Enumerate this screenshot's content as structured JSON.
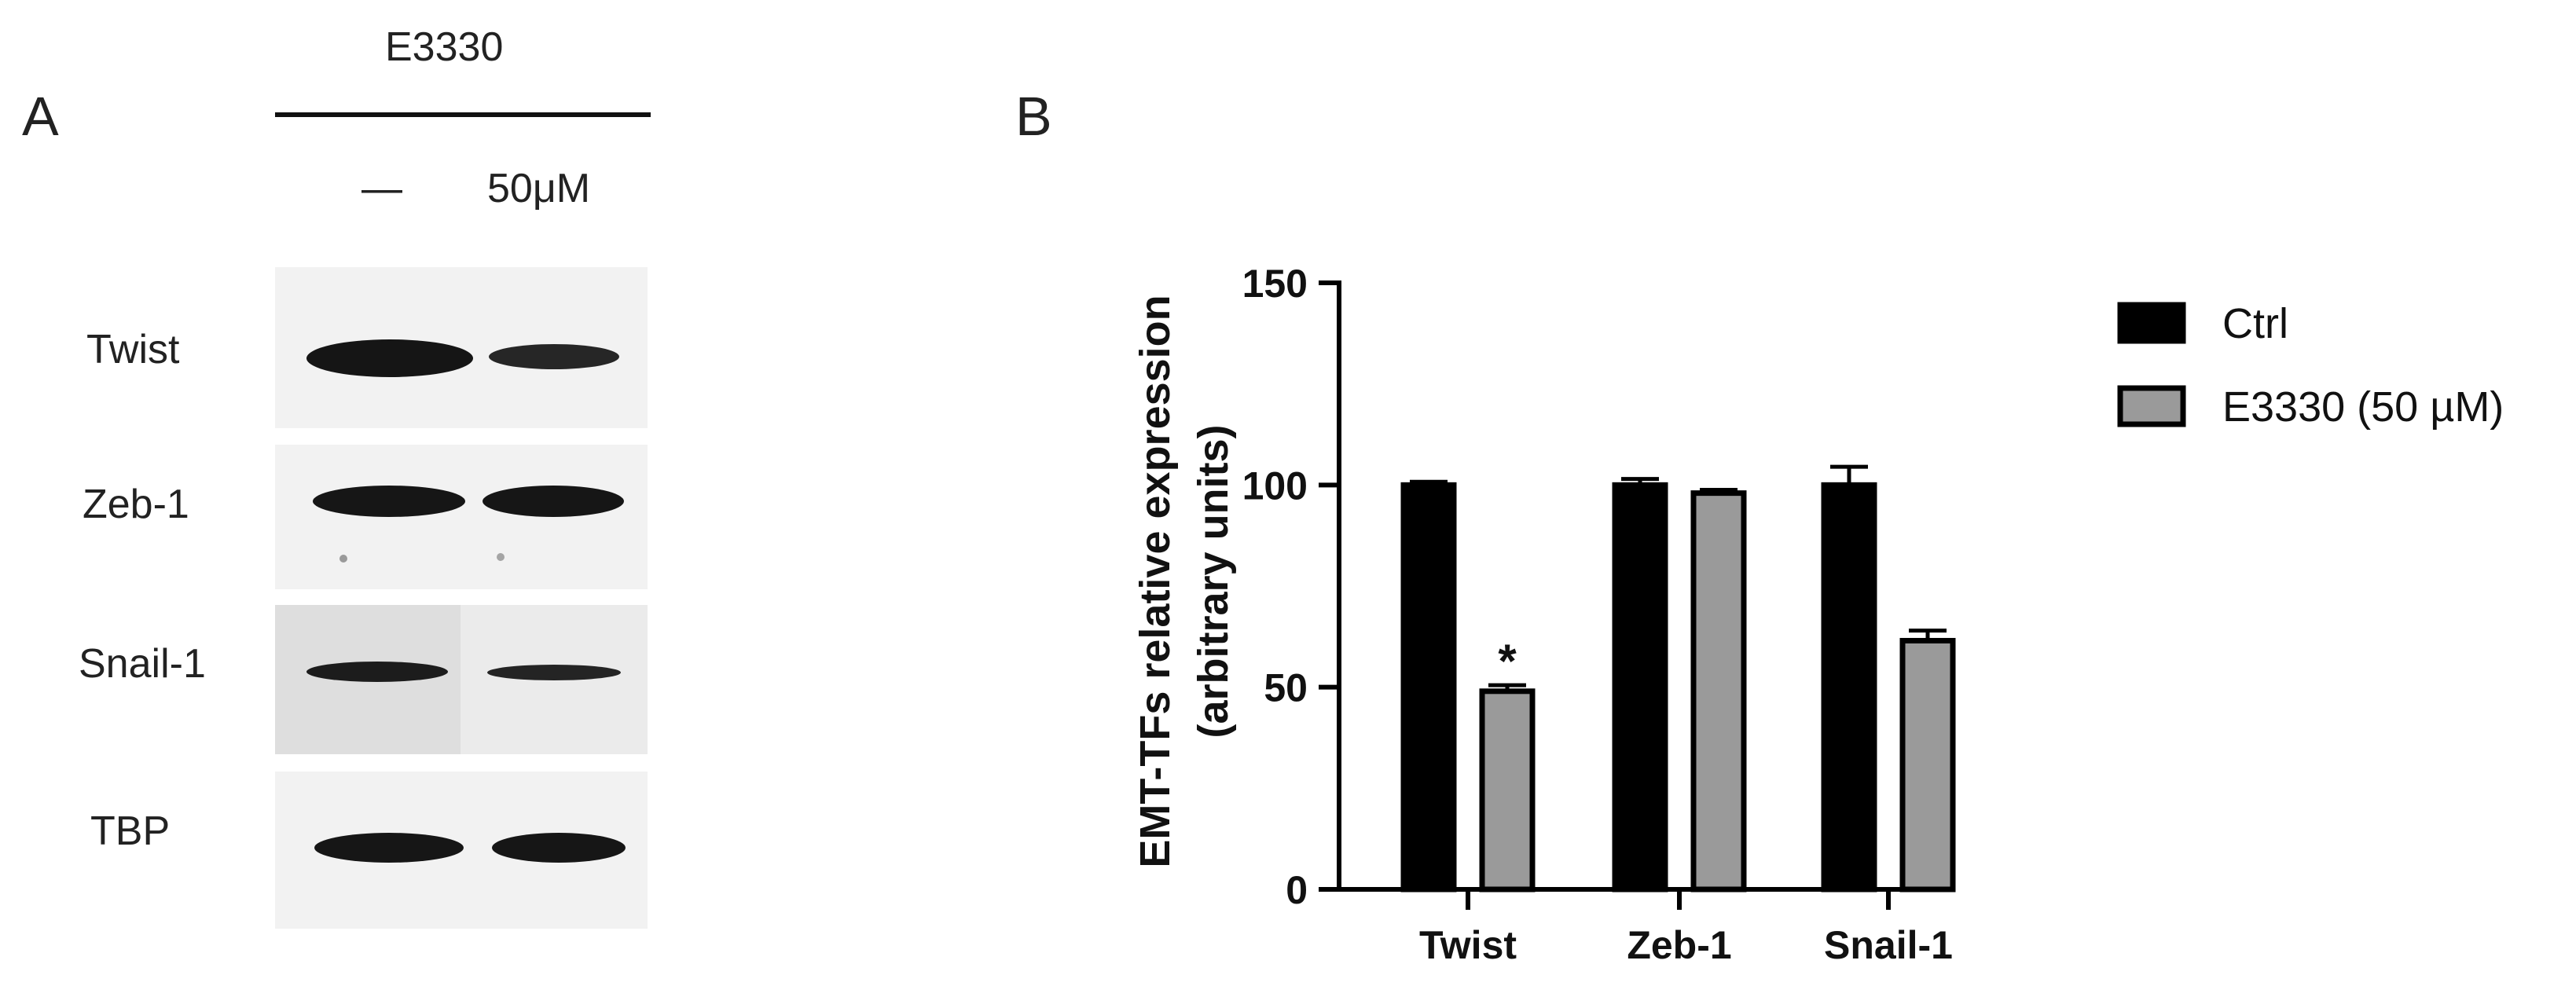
{
  "panel_a": {
    "label": "A",
    "treatment": "E3330",
    "lanes": [
      "—",
      "50μM"
    ],
    "proteins": [
      "Twist",
      "Zeb-1",
      "Snail-1",
      "TBP"
    ]
  },
  "panel_b": {
    "label": "B"
  },
  "chart_data": {
    "type": "bar",
    "categories": [
      "Twist",
      "Zeb-1",
      "Snail-1"
    ],
    "series": [
      {
        "name": "Ctrl",
        "values": [
          100,
          100,
          100
        ],
        "errors": [
          0.8,
          1.5,
          4.5
        ],
        "color": "#000000"
      },
      {
        "name": "E3330 (50 µM)",
        "values": [
          49,
          98,
          61.5
        ],
        "errors": [
          1.5,
          0.8,
          2.5
        ],
        "color": "#9a9a9a"
      }
    ],
    "annotations": [
      {
        "category": "Twist",
        "series": "E3330 (50 µM)",
        "text": "*"
      }
    ],
    "ylabel_line1": "EMT-TFs relative expression",
    "ylabel_line2": "(arbitrary units)",
    "ylim": [
      0,
      150
    ],
    "yticks": [
      0,
      50,
      100,
      150
    ],
    "grid": false,
    "legend_position": "top-right"
  }
}
